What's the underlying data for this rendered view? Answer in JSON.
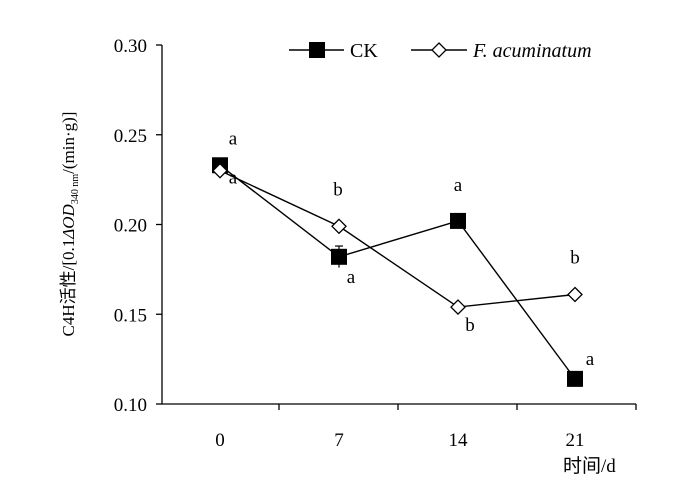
{
  "chart_data": {
    "type": "line",
    "x": [
      "0",
      "7",
      "14",
      "21"
    ],
    "xlabel": "时间/d",
    "ylabel": {
      "prefix": "C4H活性/[0.1",
      "delta": "Δ",
      "od": "OD",
      "subscript": "340 nm",
      "suffix": "/(min·g)]"
    },
    "ylim": [
      0.1,
      0.3
    ],
    "yticks": [
      "0.10",
      "0.15",
      "0.20",
      "0.25",
      "0.30"
    ],
    "grid": false,
    "legend_position": "top-right",
    "series": [
      {
        "name": "CK",
        "marker": "filled-square",
        "values": [
          0.233,
          0.182,
          0.202,
          0.114
        ],
        "error": [
          0.003,
          0.006,
          0.003,
          0.002
        ],
        "labels": [
          "a",
          "a",
          "a",
          "a"
        ]
      },
      {
        "name": "F. acuminatum",
        "marker": "open-diamond",
        "values": [
          0.23,
          0.199,
          0.154,
          0.161
        ],
        "error": [
          0.002,
          0.002,
          0.002,
          0.002
        ],
        "labels": [
          "a",
          "b",
          "b",
          "b"
        ]
      }
    ]
  }
}
